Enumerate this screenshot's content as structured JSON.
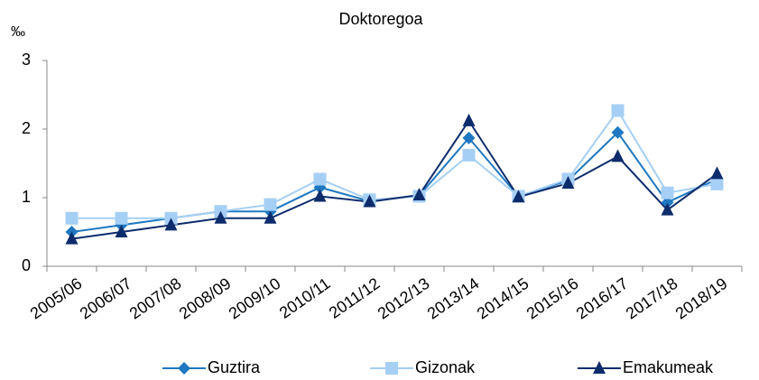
{
  "chart_data": {
    "type": "line",
    "title": "Doktoregoa",
    "y_label": "‰",
    "categories": [
      "2005/06",
      "2006/07",
      "2007/08",
      "2008/09",
      "2009/10",
      "2010/11",
      "2011/12",
      "2012/13",
      "2013/14",
      "2014/15",
      "2015/16",
      "2016/17",
      "2017/18",
      "2018/19"
    ],
    "series": [
      {
        "name": "Guztira",
        "color": "#1f78c1",
        "marker": "diamond",
        "values": [
          0.5,
          0.6,
          0.7,
          0.8,
          0.8,
          1.15,
          0.95,
          1.03,
          1.87,
          1.02,
          1.25,
          1.95,
          0.93,
          1.27
        ]
      },
      {
        "name": "Gizonak",
        "color": "#a6cff5",
        "marker": "square",
        "values": [
          0.7,
          0.7,
          0.7,
          0.8,
          0.9,
          1.27,
          0.97,
          1.02,
          1.62,
          1.02,
          1.27,
          2.27,
          1.07,
          1.2
        ]
      },
      {
        "name": "Emakumeak",
        "color": "#0d2c6c",
        "marker": "triangle",
        "values": [
          0.4,
          0.5,
          0.6,
          0.7,
          0.7,
          1.02,
          0.94,
          1.04,
          2.12,
          1.01,
          1.21,
          1.6,
          0.82,
          1.35
        ]
      }
    ],
    "ylim": [
      0,
      3
    ],
    "yticks": [
      0,
      1,
      2,
      3
    ],
    "grid": false,
    "legend": "bottom"
  }
}
